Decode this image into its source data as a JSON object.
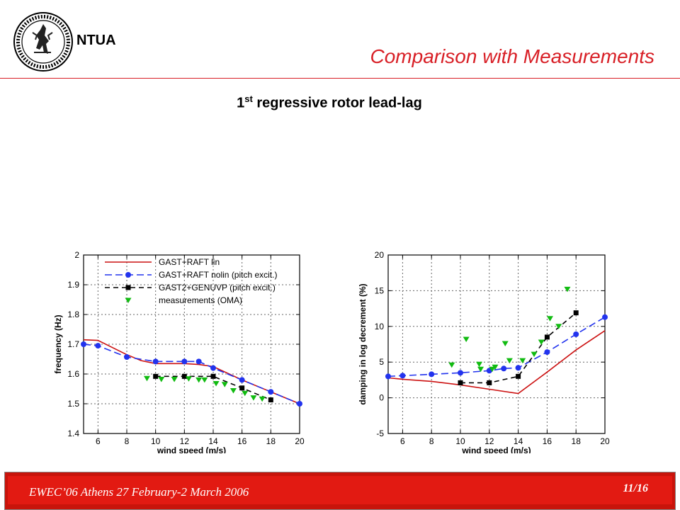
{
  "header": {
    "org": "NTUA",
    "title": "Comparison with Measurements",
    "subtitle_prefix": "1",
    "subtitle_sup": "st",
    "subtitle_rest": " regressive rotor lead-lag"
  },
  "footer": {
    "text": "EWEC’06 Athens 27 February-2 March 2006",
    "page": "11/16"
  },
  "colors": {
    "accent": "#d81f26",
    "lin": "#cc1111",
    "nolin": "#2233ee",
    "genuvp": "#000000",
    "meas": "#11bb11"
  },
  "chart_data": [
    {
      "type": "line",
      "xlabel": "wind speed (m/s)",
      "ylabel": "frequency (Hz)",
      "xlim": [
        5,
        20
      ],
      "ylim": [
        1.4,
        2.0
      ],
      "xticks": [
        6,
        8,
        10,
        12,
        14,
        16,
        18,
        20
      ],
      "xtick_labels": [
        "6",
        "8",
        "10",
        "12",
        "14",
        "16",
        "18",
        "20"
      ],
      "yticks": [
        1.4,
        1.5,
        1.6,
        1.7,
        1.8,
        1.9,
        2.0
      ],
      "ytick_labels": [
        "1.4",
        "1.5",
        "1.6",
        "1.7",
        "1.8",
        "1.9",
        "2"
      ],
      "grid": true,
      "legend_position": "top",
      "series": [
        {
          "name": "GAST+RAFT lin",
          "style": "lin",
          "x": [
            5,
            6,
            8,
            9,
            10,
            12,
            13,
            14,
            16,
            18,
            20
          ],
          "y": [
            1.715,
            1.713,
            1.665,
            1.645,
            1.635,
            1.635,
            1.632,
            1.625,
            1.58,
            1.54,
            1.5
          ]
        },
        {
          "name": "GAST+RAFT nolin (pitch excit.)",
          "style": "nolin",
          "x": [
            5,
            6,
            8,
            10,
            12,
            13,
            14,
            16,
            18,
            20
          ],
          "y": [
            1.7,
            1.695,
            1.657,
            1.642,
            1.642,
            1.642,
            1.62,
            1.58,
            1.54,
            1.5
          ]
        },
        {
          "name": "GAST2+GENUVP (pitch excit.)",
          "style": "genuvp",
          "x": [
            10,
            12,
            14,
            16,
            18
          ],
          "y": [
            1.592,
            1.592,
            1.592,
            1.553,
            1.513
          ]
        },
        {
          "name": "measurements (OMA)",
          "style": "meas",
          "x": [
            9.4,
            10.4,
            11.3,
            12.3,
            13,
            13.4,
            14.2,
            14.8,
            15.4,
            16.2,
            16.8,
            17.4
          ],
          "y": [
            1.585,
            1.582,
            1.582,
            1.584,
            1.58,
            1.58,
            1.568,
            1.565,
            1.544,
            1.535,
            1.52,
            1.516
          ]
        }
      ]
    },
    {
      "type": "line",
      "xlabel": "wind speed (m/s)",
      "ylabel": "damping in log decrement (%)",
      "xlim": [
        5,
        20
      ],
      "ylim": [
        -5,
        20
      ],
      "xticks": [
        6,
        8,
        10,
        12,
        14,
        16,
        18,
        20
      ],
      "xtick_labels": [
        "6",
        "8",
        "10",
        "12",
        "14",
        "16",
        "18",
        "20"
      ],
      "yticks": [
        -5,
        0,
        5,
        10,
        15,
        20
      ],
      "ytick_labels": [
        "-5",
        "0",
        "5",
        "10",
        "15",
        "20"
      ],
      "grid": true,
      "series": [
        {
          "name": "GAST+RAFT lin",
          "style": "lin",
          "x": [
            5,
            6,
            8,
            10,
            12,
            14,
            16,
            18,
            20
          ],
          "y": [
            2.8,
            2.6,
            2.3,
            1.8,
            1.2,
            0.6,
            3.6,
            6.7,
            9.4
          ]
        },
        {
          "name": "GAST+RAFT nolin (pitch excit.)",
          "style": "nolin",
          "x": [
            5,
            6,
            8,
            10,
            12,
            13,
            14,
            16,
            18,
            20
          ],
          "y": [
            3.0,
            3.1,
            3.3,
            3.5,
            3.8,
            4.1,
            4.2,
            6.4,
            8.9,
            11.3
          ]
        },
        {
          "name": "GAST2+GENUVP (pitch excit.)",
          "style": "genuvp",
          "x": [
            10,
            12,
            14,
            16,
            18
          ],
          "y": [
            2.1,
            2.1,
            3.0,
            8.5,
            11.9
          ]
        },
        {
          "name": "measurements (OMA)",
          "style": "meas",
          "x": [
            9.4,
            10.4,
            11.3,
            11.4,
            12.2,
            12.4,
            13.1,
            13.4,
            14.3,
            15.1,
            15.6,
            16.2,
            16.8,
            17.4
          ],
          "y": [
            4.6,
            8.2,
            4.7,
            4.0,
            4.0,
            4.3,
            7.6,
            5.2,
            5.2,
            6.1,
            7.8,
            11.1,
            10.0,
            15.2
          ]
        }
      ]
    }
  ]
}
